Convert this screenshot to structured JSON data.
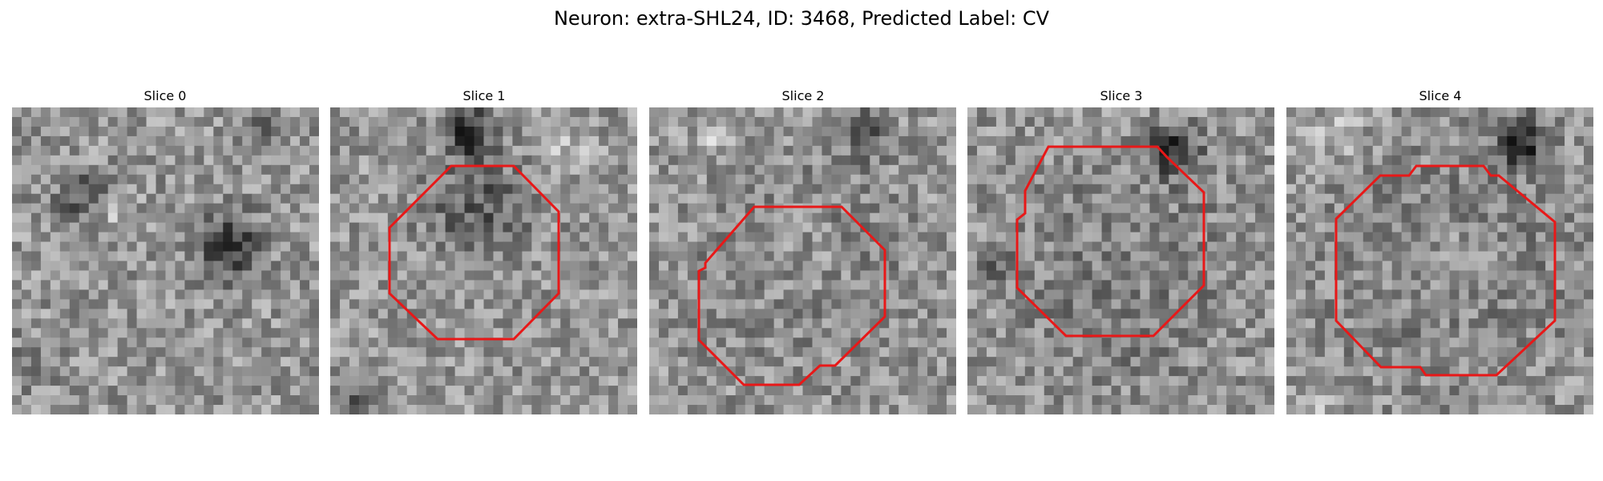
{
  "figure": {
    "title": "Neuron: extra-SHL24, ID: 3468, Predicted Label: CV",
    "outline_color": "#e81818",
    "colormap": "gray"
  },
  "panels": [
    {
      "label": "Slice 0",
      "has_outline": false
    },
    {
      "label": "Slice 1",
      "has_outline": true
    },
    {
      "label": "Slice 2",
      "has_outline": true
    },
    {
      "label": "Slice 3",
      "has_outline": true
    },
    {
      "label": "Slice 4",
      "has_outline": true
    }
  ]
}
